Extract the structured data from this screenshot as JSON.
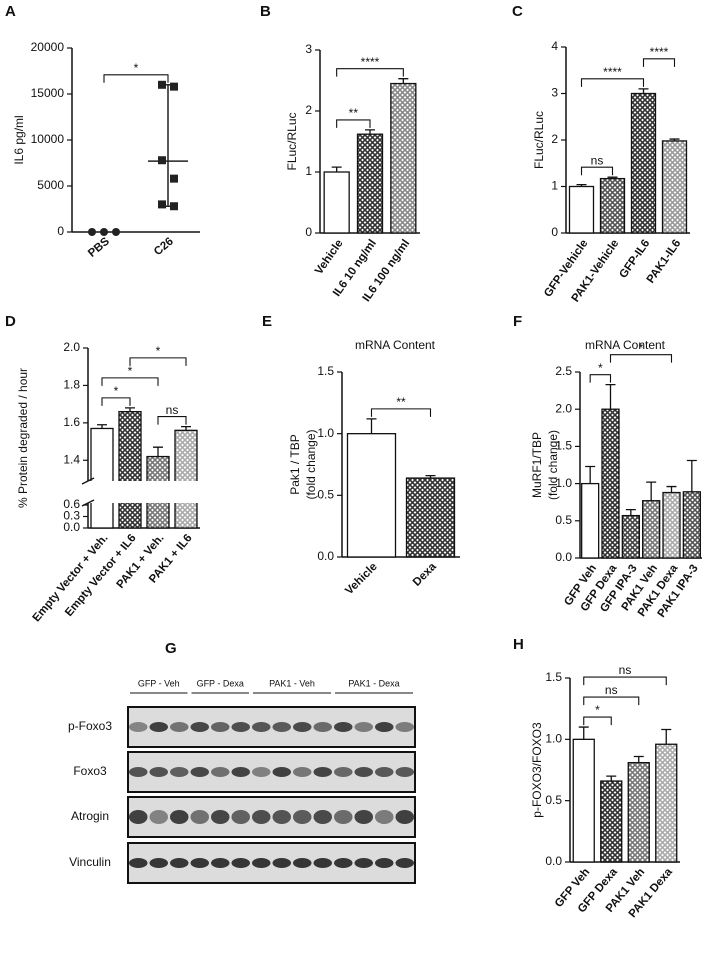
{
  "chart_data": [
    {
      "type": "dot",
      "panel": "A",
      "ylabel": "IL6 pg/ml",
      "categories": [
        "PBS",
        "C26"
      ],
      "points": [
        [
          0,
          0,
          0
        ],
        [
          16000,
          15800,
          7800,
          5800,
          3000,
          2800
        ]
      ],
      "markers": [
        "circle",
        "square"
      ],
      "color": "#222222",
      "center": [
        null,
        7700
      ],
      "whisker_low": [
        null,
        2800
      ],
      "whisker_high": [
        null,
        16000
      ],
      "ylim": [
        0,
        20000
      ],
      "yticks": [
        0,
        5000,
        10000,
        15000,
        20000
      ],
      "comparisons": [
        {
          "label": "*",
          "between": [
            0,
            1
          ]
        }
      ]
    },
    {
      "type": "bar",
      "panel": "B",
      "ylabel": "FLuc/RLuc",
      "categories": [
        "Vehicle",
        "IL6 10 ng/ml",
        "IL6 100 ng/ml"
      ],
      "values": [
        1.0,
        1.62,
        2.45
      ],
      "errors": [
        0.08,
        0.07,
        0.08
      ],
      "colors": [
        "#ffffff",
        "#333333",
        "#888888"
      ],
      "ylim": [
        0,
        3
      ],
      "yticks": [
        0,
        1,
        2,
        3
      ],
      "comparisons": [
        {
          "label": "**",
          "between": [
            0,
            1
          ]
        },
        {
          "label": "****",
          "between": [
            0,
            2
          ]
        }
      ]
    },
    {
      "type": "bar",
      "panel": "C",
      "ylabel": "FLuc/RLuc",
      "categories": [
        "GFP-Vehicle",
        "PAK1-Vehicle",
        "GFP-IL6",
        "PAK1-IL6"
      ],
      "values": [
        1.0,
        1.17,
        3.0,
        1.98
      ],
      "errors": [
        0.04,
        0.03,
        0.1,
        0.04
      ],
      "colors": [
        "#ffffff",
        "#555555",
        "#333333",
        "#999999"
      ],
      "ylim": [
        0,
        4
      ],
      "yticks": [
        0,
        1,
        2,
        3,
        4
      ],
      "comparisons": [
        {
          "label": "ns",
          "between": [
            0,
            1
          ]
        },
        {
          "label": "****",
          "between": [
            0,
            2
          ]
        },
        {
          "label": "****",
          "between": [
            2,
            3
          ]
        }
      ]
    },
    {
      "type": "bar",
      "panel": "D",
      "ylabel": "% Protein degraded / hour",
      "categories": [
        "Empty Vector + Veh.",
        "Empty Vector + IL6",
        "PAK1 + Veh.",
        "PAK1 + IL6"
      ],
      "values": [
        1.57,
        1.66,
        1.42,
        1.56
      ],
      "errors": [
        0.02,
        0.02,
        0.05,
        0.02
      ],
      "colors": [
        "#ffffff",
        "#333333",
        "#777777",
        "#aaaaaa"
      ],
      "ylim": [
        1.3,
        2.0
      ],
      "yticks": [
        1.4,
        1.6,
        1.8,
        {
          "value": 2.0,
          "label": "2.0"
        }
      ],
      "ylim_lower": [
        0,
        0.6
      ],
      "yticks_lower": [
        {
          "value": 0,
          "label": "0.0"
        },
        0.3,
        0.6
      ],
      "comparisons": [
        {
          "label": "*",
          "between": [
            0,
            1
          ]
        },
        {
          "label": "ns",
          "between": [
            2,
            3
          ]
        },
        {
          "label": "*",
          "between": [
            0,
            2
          ]
        },
        {
          "label": "*",
          "between": [
            1,
            3
          ]
        }
      ]
    },
    {
      "type": "bar",
      "panel": "E",
      "title": "mRNA Content",
      "ylabel": [
        "Pak1 / TBP",
        "(fold change)"
      ],
      "categories": [
        "Vehicle",
        "Dexa"
      ],
      "values": [
        1.0,
        0.64
      ],
      "errors": [
        0.12,
        0.02
      ],
      "colors": [
        "#ffffff",
        "#333333"
      ],
      "ylim": [
        0,
        1.5
      ],
      "yticks": [
        {
          "value": 0,
          "label": "0.0"
        },
        0.5,
        {
          "value": 1.0,
          "label": "1.0"
        },
        1.5
      ],
      "comparisons": [
        {
          "label": "**",
          "between": [
            0,
            1
          ]
        }
      ]
    },
    {
      "type": "bar",
      "panel": "F",
      "title": "mRNA Content",
      "ylabel": [
        "MuRF1/TBP",
        "(fold change)"
      ],
      "categories": [
        "GFP Veh",
        "GFP Dexa",
        "GFP IPA-3",
        "PAK1 Veh",
        "PAK1 Dexa",
        "PAK1 IPA-3"
      ],
      "values": [
        1.0,
        2.0,
        0.57,
        0.77,
        0.88,
        0.89
      ],
      "errors": [
        0.23,
        0.33,
        0.08,
        0.25,
        0.08,
        0.42
      ],
      "colors": [
        "#ffffff",
        "#333333",
        "#444444",
        "#777777",
        "#aaaaaa",
        "#555555"
      ],
      "ylim": [
        0,
        2.5
      ],
      "yticks": [
        {
          "value": 0,
          "label": "0.0"
        },
        0.5,
        {
          "value": 1.0,
          "label": "1.0"
        },
        1.5,
        {
          "value": 2.0,
          "label": "2.0"
        },
        2.5
      ],
      "comparisons": [
        {
          "label": "*",
          "between": [
            0,
            1
          ]
        },
        {
          "label": "*",
          "between": [
            1,
            4
          ]
        }
      ]
    },
    {
      "type": "bar",
      "panel": "H",
      "ylabel": "p-FOXO3/FOXO3",
      "categories": [
        "GFP Veh",
        "GFP Dexa",
        "PAK1 Veh",
        "PAK1 Dexa"
      ],
      "values": [
        1.0,
        0.66,
        0.81,
        0.96
      ],
      "errors": [
        0.1,
        0.04,
        0.05,
        0.12
      ],
      "colors": [
        "#ffffff",
        "#333333",
        "#777777",
        "#aaaaaa"
      ],
      "ylim": [
        0,
        1.5
      ],
      "yticks": [
        {
          "value": 0,
          "label": "0.0"
        },
        0.5,
        {
          "value": 1.0,
          "label": "1.0"
        },
        1.5
      ],
      "comparisons": [
        {
          "label": "*",
          "between": [
            0,
            1
          ]
        },
        {
          "label": "ns",
          "between": [
            0,
            2
          ]
        },
        {
          "label": "ns",
          "between": [
            0,
            3
          ]
        }
      ]
    }
  ],
  "blot": {
    "panel": "G",
    "groups": [
      "GFP - Veh",
      "GFP - Dexa",
      "PAK1 - Veh",
      "PAK1 - Dexa"
    ],
    "rows": [
      "p-Foxo3",
      "Foxo3",
      "Atrogin",
      "Vinculin"
    ]
  }
}
